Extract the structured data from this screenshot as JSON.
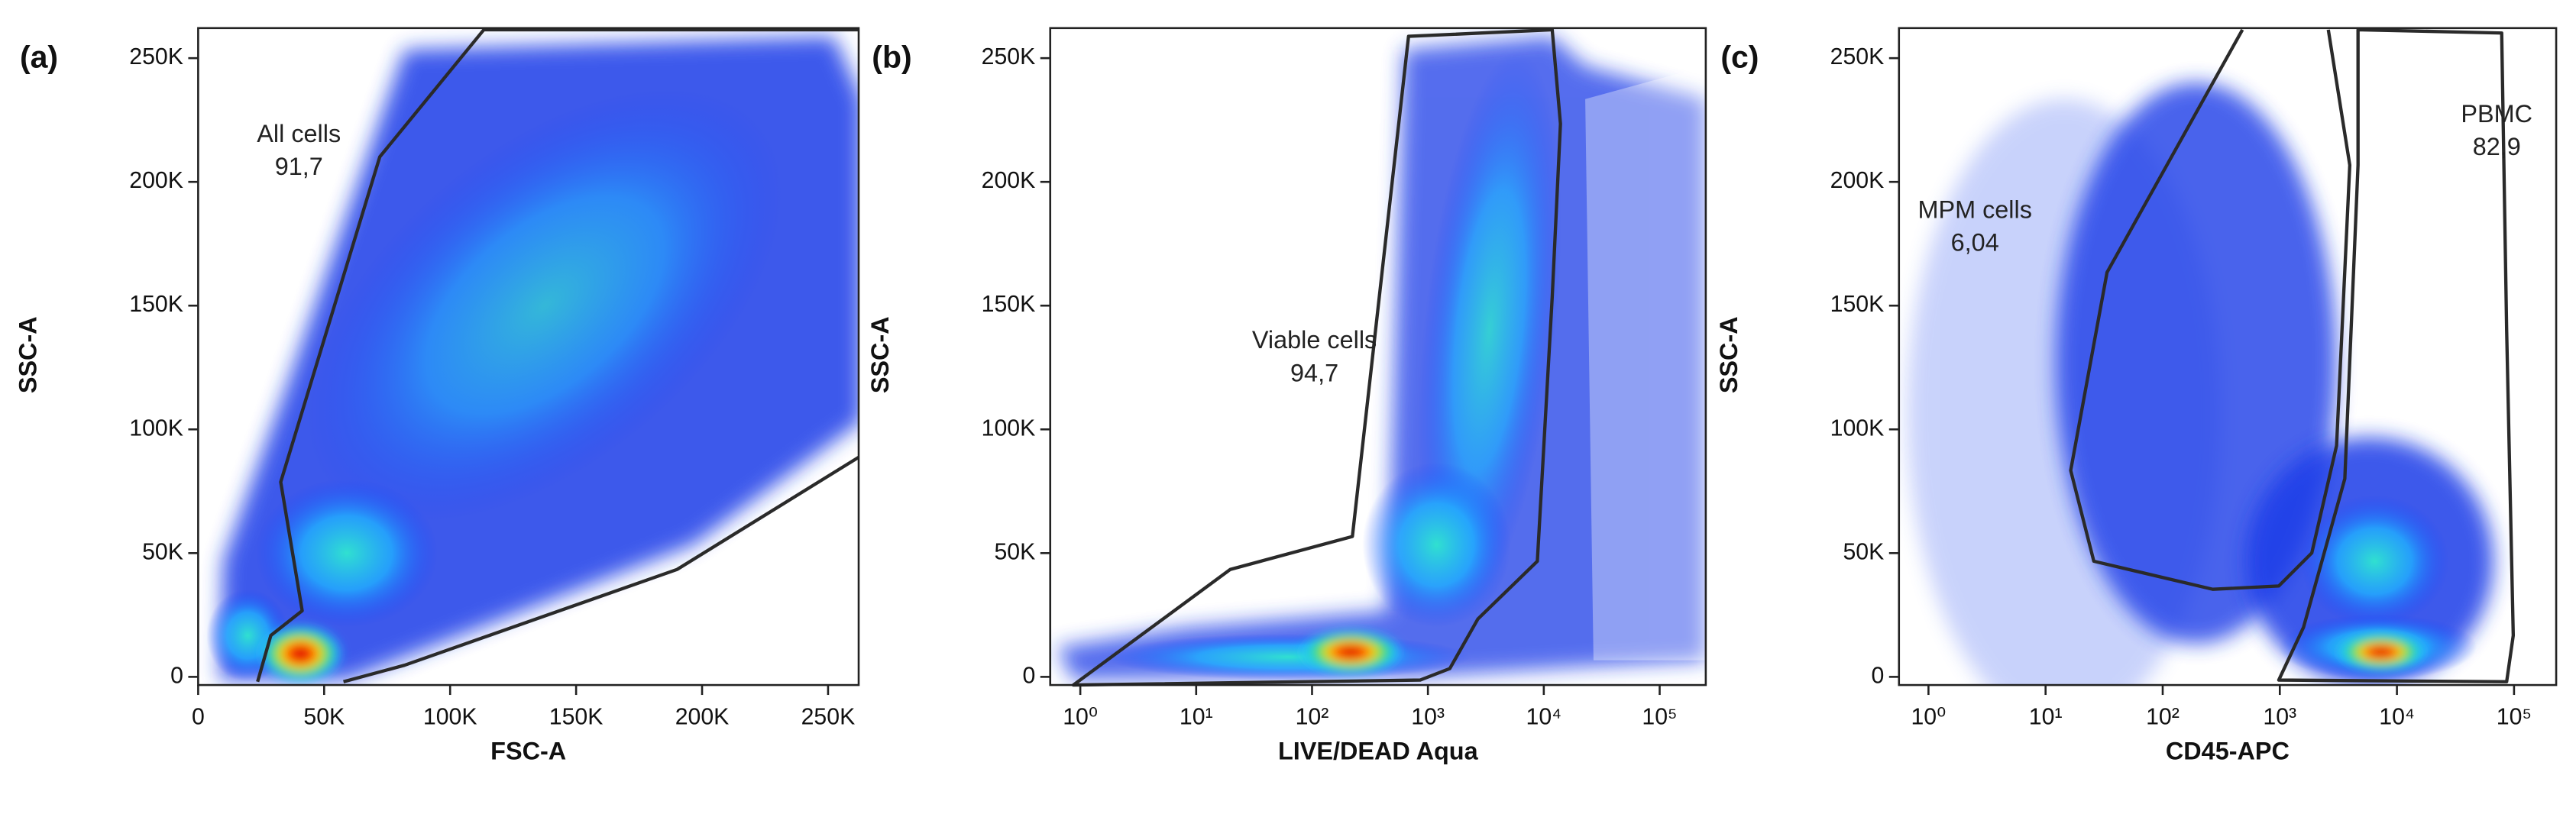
{
  "chart_data": [
    {
      "type": "scatter",
      "panel_label": "(a)",
      "xlabel": "FSC-A",
      "ylabel": "SSC-A",
      "xscale": "linear",
      "xlim": [
        0,
        262144
      ],
      "ylim": [
        -3300,
        262144
      ],
      "xticks": [
        0,
        {
          "value": 50000,
          "label": "50K"
        },
        {
          "value": 100000,
          "label": "100K"
        },
        {
          "value": 150000,
          "label": "150K"
        },
        {
          "value": 200000,
          "label": "200K"
        },
        {
          "value": 250000,
          "label": "250K"
        }
      ],
      "yticks": [
        0,
        {
          "value": 50000,
          "label": "50K"
        },
        {
          "value": 100000,
          "label": "100K"
        },
        {
          "value": 150000,
          "label": "150K"
        },
        {
          "value": 200000,
          "label": "200K"
        },
        {
          "value": 250000,
          "label": "250K"
        }
      ],
      "annotations": [
        {
          "name": "All cells",
          "value": "91,7"
        }
      ]
    },
    {
      "type": "scatter",
      "panel_label": "(b)",
      "xlabel": "LIVE/DEAD Aqua",
      "ylabel": "SSC-A",
      "xscale": "log",
      "xlim": [
        0.55,
        250000
      ],
      "ylim": [
        -3300,
        262144
      ],
      "xticks": [
        {
          "value": 1,
          "label": "10⁰"
        },
        {
          "value": 10,
          "label": "10¹"
        },
        {
          "value": 100,
          "label": "10²"
        },
        {
          "value": 1000,
          "label": "10³"
        },
        {
          "value": 10000,
          "label": "10⁴"
        },
        {
          "value": 100000,
          "label": "10⁵"
        }
      ],
      "yticks": [
        0,
        {
          "value": 50000,
          "label": "50K"
        },
        {
          "value": 100000,
          "label": "100K"
        },
        {
          "value": 150000,
          "label": "150K"
        },
        {
          "value": 200000,
          "label": "200K"
        },
        {
          "value": 250000,
          "label": "250K"
        }
      ],
      "annotations": [
        {
          "name": "Viable cells",
          "value": "94,7"
        }
      ]
    },
    {
      "type": "scatter",
      "panel_label": "(c)",
      "xlabel": "CD45-APC",
      "ylabel": "SSC-A",
      "xscale": "log",
      "xlim": [
        0.56,
        229000
      ],
      "ylim": [
        -3300,
        262144
      ],
      "xticks": [
        {
          "value": 1,
          "label": "10⁰"
        },
        {
          "value": 10,
          "label": "10¹"
        },
        {
          "value": 100,
          "label": "10²"
        },
        {
          "value": 1000,
          "label": "10³"
        },
        {
          "value": 10000,
          "label": "10⁴"
        },
        {
          "value": 100000,
          "label": "10⁵"
        }
      ],
      "yticks": [
        0,
        {
          "value": 50000,
          "label": "50K"
        },
        {
          "value": 100000,
          "label": "100K"
        },
        {
          "value": 150000,
          "label": "150K"
        },
        {
          "value": 200000,
          "label": "200K"
        },
        {
          "value": 250000,
          "label": "250K"
        }
      ],
      "annotations": [
        {
          "name": "MPM cells",
          "value": "6,04"
        },
        {
          "name": "PBMC",
          "value": "82,9"
        }
      ]
    }
  ]
}
